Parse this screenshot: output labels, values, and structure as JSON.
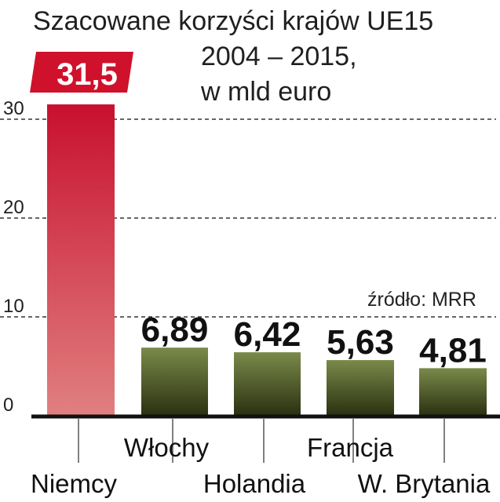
{
  "chart_data": {
    "type": "bar",
    "title_lines": [
      "Szacowane korzyści krajów UE15",
      "2004 – 2015,",
      "w mld euro"
    ],
    "categories": [
      "Niemcy",
      "Włochy",
      "Holandia",
      "Francja",
      "W. Brytania"
    ],
    "values": [
      31.5,
      6.89,
      6.42,
      5.63,
      4.81
    ],
    "value_labels": [
      "31,5",
      "6,89",
      "6,42",
      "5,63",
      "4,81"
    ],
    "yticks": [
      0,
      10,
      20,
      30
    ],
    "ylim": [
      0,
      31.5
    ],
    "grid": "dashed horizontal",
    "source_note": "źródło: MRR",
    "colors": {
      "highlight_top": "#c8102e",
      "highlight_bottom": "#e08080",
      "bar_top": "#7a8a4a",
      "bar_bottom": "#2a3010",
      "label_badge": "#d0112b"
    }
  }
}
